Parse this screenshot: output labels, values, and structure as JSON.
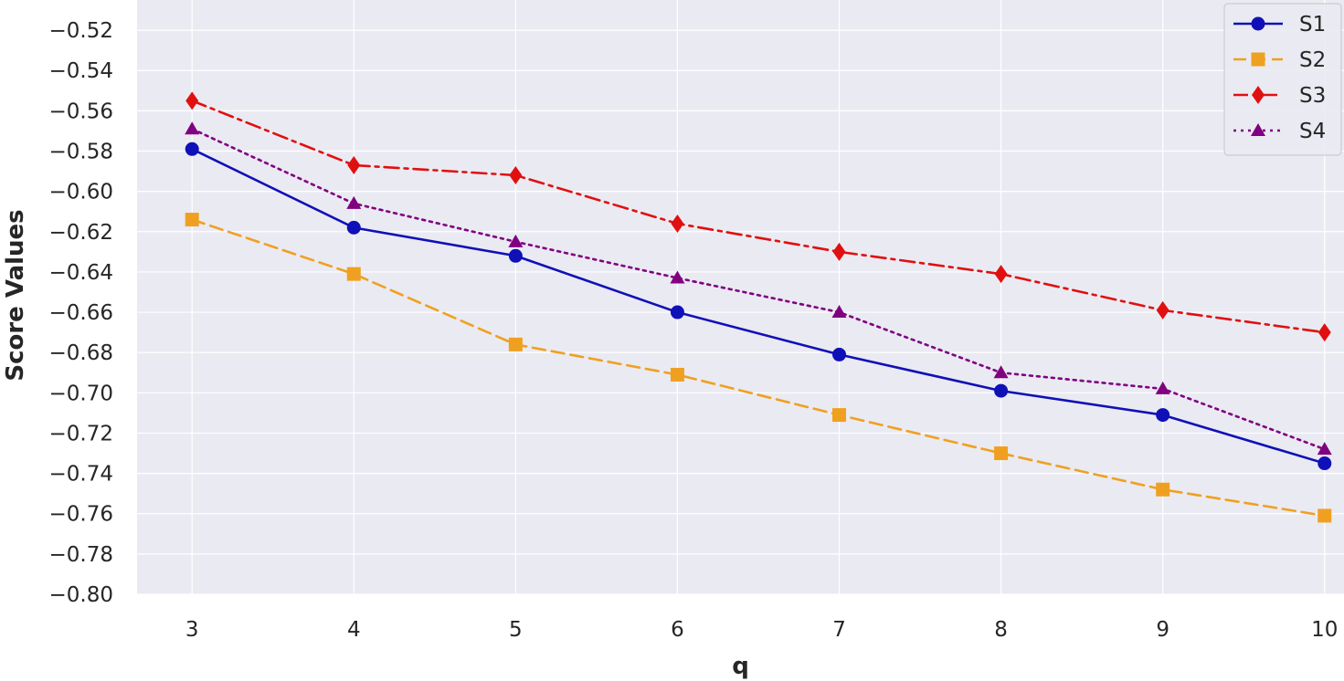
{
  "chart_data": {
    "type": "line",
    "xlabel": "q",
    "ylabel": "Score Values",
    "x": [
      3,
      4,
      5,
      6,
      7,
      8,
      9,
      10
    ],
    "xlim": [
      2.66,
      10.12
    ],
    "ylim": [
      -0.8,
      -0.505
    ],
    "xticks": [
      "3",
      "4",
      "5",
      "6",
      "7",
      "8",
      "9",
      "10"
    ],
    "yticks": [
      -0.8,
      -0.78,
      -0.76,
      -0.74,
      -0.72,
      -0.7,
      -0.68,
      -0.66,
      -0.64,
      -0.62,
      -0.6,
      -0.58,
      -0.56,
      -0.54,
      -0.52
    ],
    "ytick_labels": [
      "−0.80",
      "−0.78",
      "−0.76",
      "−0.74",
      "−0.72",
      "−0.70",
      "−0.68",
      "−0.66",
      "−0.64",
      "−0.62",
      "−0.60",
      "−0.58",
      "−0.56",
      "−0.54",
      "−0.52"
    ],
    "grid": true,
    "legend_position": "top-right",
    "series": [
      {
        "name": "S1",
        "values": [
          -0.579,
          -0.618,
          -0.632,
          -0.66,
          -0.681,
          -0.699,
          -0.711,
          -0.735
        ],
        "color": "#1010b8",
        "marker": "circle",
        "linestyle": "solid"
      },
      {
        "name": "S2",
        "values": [
          -0.614,
          -0.641,
          -0.676,
          -0.691,
          -0.711,
          -0.73,
          -0.748,
          -0.761
        ],
        "color": "#f0a020",
        "marker": "square",
        "linestyle": "dashed"
      },
      {
        "name": "S3",
        "values": [
          -0.555,
          -0.587,
          -0.592,
          -0.616,
          -0.63,
          -0.641,
          -0.659,
          -0.67
        ],
        "color": "#e01010",
        "marker": "diamond",
        "linestyle": "dashdot"
      },
      {
        "name": "S4",
        "values": [
          -0.569,
          -0.606,
          -0.625,
          -0.643,
          -0.66,
          -0.69,
          -0.698,
          -0.728
        ],
        "color": "#800080",
        "marker": "triangle",
        "linestyle": "dotted"
      }
    ]
  }
}
